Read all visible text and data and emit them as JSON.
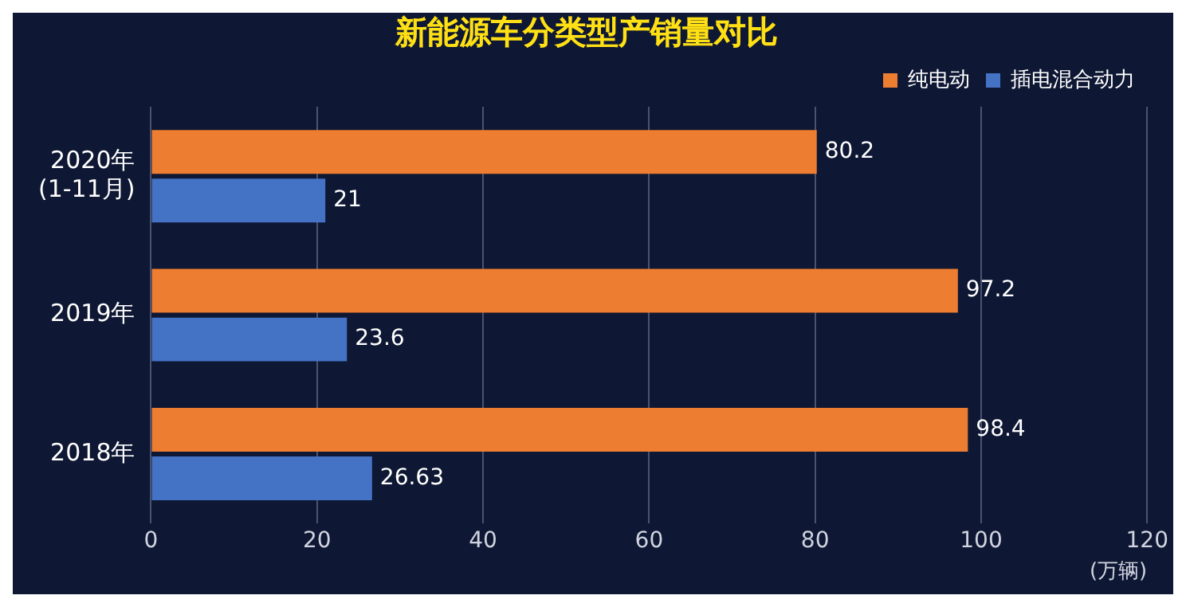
{
  "chart_data": {
    "type": "bar",
    "orientation": "horizontal",
    "title": "新能源车分类型产销量对比",
    "categories": [
      "2020年\n(1-11月)",
      "2019年",
      "2018年"
    ],
    "series": [
      {
        "name": "纯电动",
        "color": "#ed7d31",
        "values": [
          80.2,
          97.2,
          98.4
        ]
      },
      {
        "name": "插电混合动力",
        "color": "#4472c4",
        "values": [
          21,
          23.6,
          26.63
        ]
      }
    ],
    "xlim": [
      0,
      120
    ],
    "xticks": [
      0,
      20,
      40,
      60,
      80,
      100,
      120
    ],
    "xlabel": "(万辆)",
    "grid": "x",
    "legend": "top right",
    "data_labels": true
  }
}
